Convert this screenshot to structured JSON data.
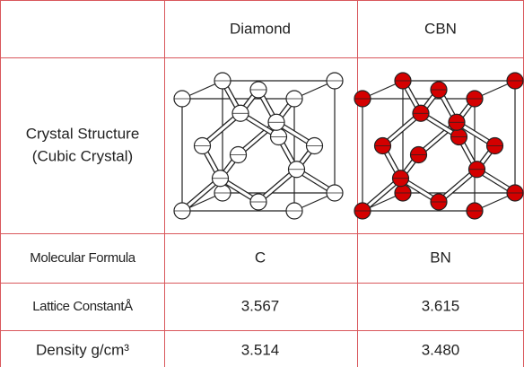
{
  "table": {
    "header": [
      "Diamond",
      "CBN"
    ],
    "structure": {
      "label": [
        "Crystal Structure",
        "(Cubic Crystal)"
      ]
    },
    "rows": [
      [
        "Molecular Formula",
        "C",
        "BN"
      ],
      [
        "Lattice ConstantÅ",
        "3.567",
        "3.615"
      ],
      [
        "Density g/cm³",
        "3.514",
        "3.480"
      ]
    ]
  }
}
